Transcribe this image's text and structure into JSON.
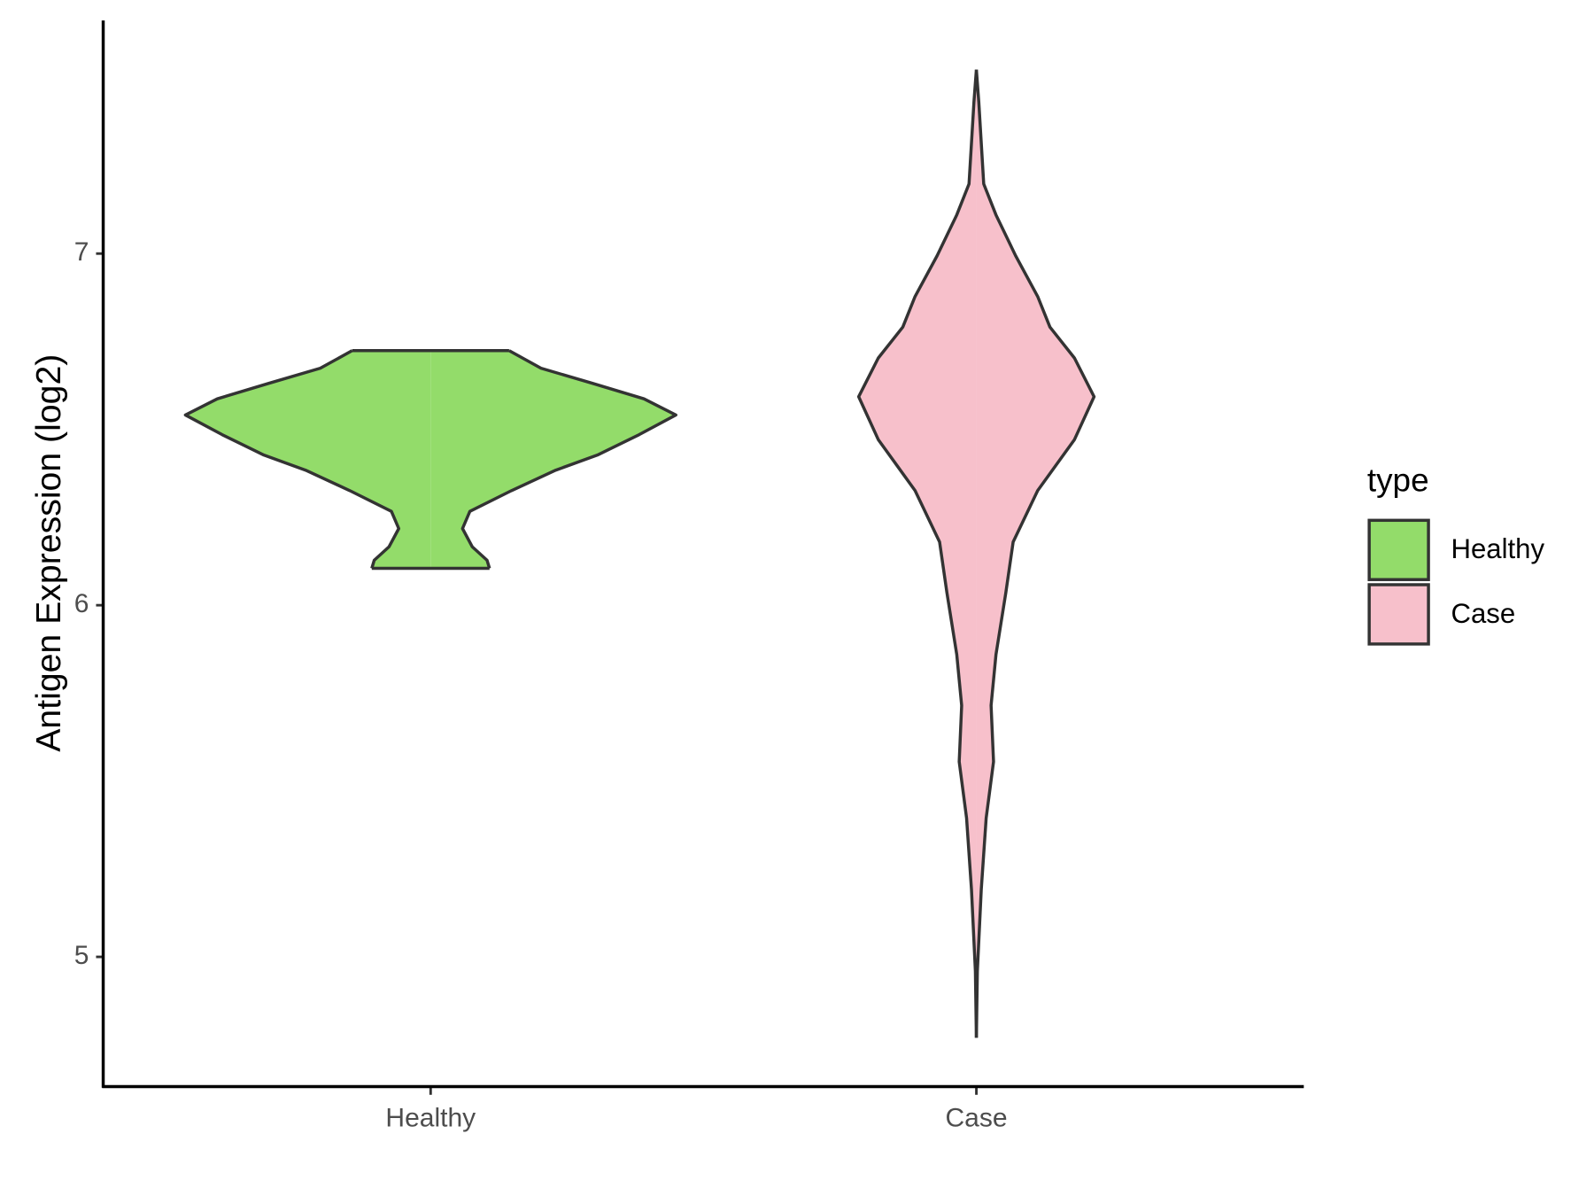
{
  "chart_data": {
    "type": "violin",
    "y_label": "Antigen Expression (log2)",
    "categories": [
      "Healthy",
      "Case"
    ],
    "legend_title": "type",
    "legend": "right",
    "ylim": [
      4.631,
      7.663
    ],
    "yticks": [
      5,
      6,
      7
    ],
    "series": [
      {
        "name": "Healthy",
        "color": "#93dc6a",
        "values": [
          6.724,
          6.674,
          6.631,
          6.587,
          6.541,
          6.485,
          6.427,
          6.384,
          6.326,
          6.267,
          6.218,
          6.166,
          6.128,
          6.105
        ],
        "widths": [
          0.32,
          0.45,
          0.66,
          0.87,
          1.0,
          0.85,
          0.68,
          0.51,
          0.33,
          0.16,
          0.13,
          0.17,
          0.23,
          0.24
        ]
      },
      {
        "name": "Case",
        "color": "#f7c0cb",
        "values": [
          7.523,
          7.43,
          7.198,
          7.11,
          6.994,
          6.878,
          6.791,
          6.703,
          6.593,
          6.471,
          6.326,
          6.18,
          6.035,
          5.86,
          5.715,
          5.555,
          5.395,
          5.192,
          4.959,
          4.77
        ],
        "widths": [
          0,
          0.01,
          0.03,
          0.08,
          0.16,
          0.25,
          0.3,
          0.4,
          0.48,
          0.4,
          0.25,
          0.15,
          0.12,
          0.08,
          0.06,
          0.07,
          0.04,
          0.02,
          0.004,
          0
        ]
      }
    ]
  }
}
